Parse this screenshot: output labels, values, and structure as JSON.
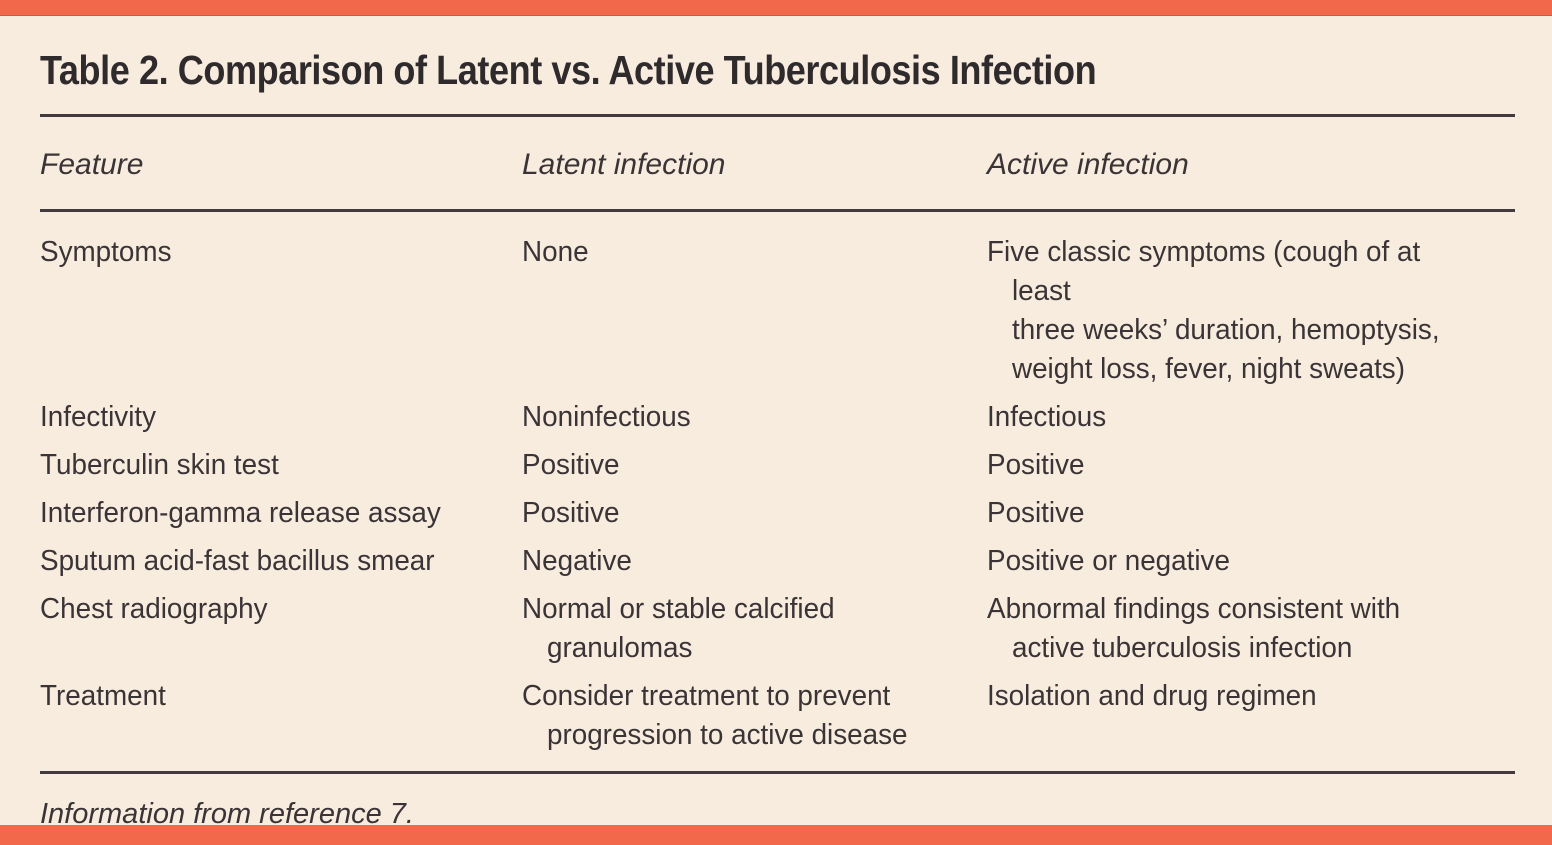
{
  "colors": {
    "accent": "#F2684A",
    "background": "#F8ECDF",
    "text": "#3B3436",
    "title_text": "#2F2A2C",
    "rule": "#423A3C"
  },
  "table": {
    "title": "Table 2. Comparison of Latent vs. Active Tuberculosis Infection",
    "columns": [
      "Feature",
      "Latent infection",
      "Active infection"
    ],
    "rows": [
      {
        "feature": "Symptoms",
        "latent": "None",
        "active": "Five classic symptoms (cough of at least\nthree weeks’ duration, hemoptysis,\nweight loss, fever, night sweats)"
      },
      {
        "feature": "Infectivity",
        "latent": "Noninfectious",
        "active": "Infectious"
      },
      {
        "feature": "Tuberculin skin test",
        "latent": "Positive",
        "active": "Positive"
      },
      {
        "feature": "Interferon-gamma release assay",
        "latent": "Positive",
        "active": "Positive"
      },
      {
        "feature": "Sputum acid-fast bacillus smear",
        "latent": "Negative",
        "active": "Positive or negative"
      },
      {
        "feature": "Chest radiography",
        "latent": "Normal or stable calcified\ngranulomas",
        "active": "Abnormal findings consistent with\nactive tuberculosis infection"
      },
      {
        "feature": "Treatment",
        "latent": "Consider treatment to prevent\nprogression to active disease",
        "active": "Isolation and drug regimen"
      }
    ],
    "footnote": "Information from reference 7."
  }
}
